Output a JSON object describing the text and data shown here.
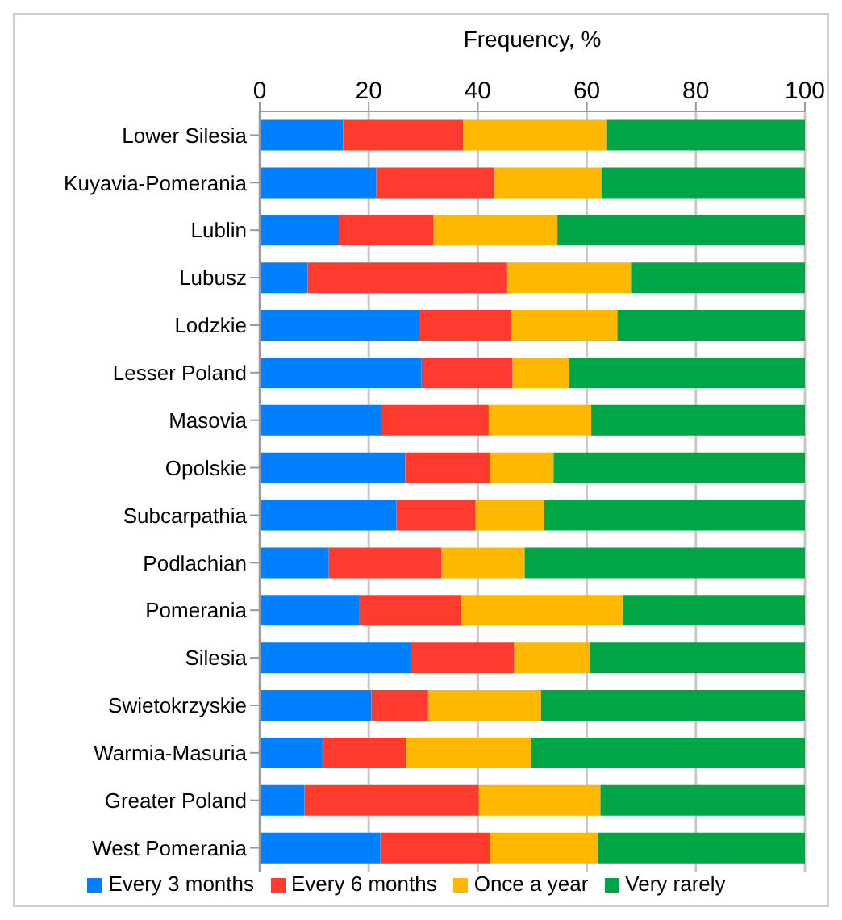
{
  "chart_data": {
    "type": "bar",
    "orientation": "horizontal",
    "stacked": true,
    "xlabel": "Frequency, %",
    "categories": [
      "Lower Silesia",
      "Kuyavia-Pomerania",
      "Lublin",
      "Lubusz",
      "Lodzkie",
      "Lesser Poland",
      "Masovia",
      "Opolskie",
      "Subcarpathia",
      "Podlachian",
      "Pomerania",
      "Silesia",
      "Swietokrzyskie",
      "Warmia-Masuria",
      "Greater Poland",
      "West Pomerania"
    ],
    "series": [
      {
        "name": "Every 3 months",
        "color": "#0080ff",
        "values": [
          15.3,
          21.4,
          14.5,
          8.8,
          29.2,
          29.7,
          22.3,
          26.7,
          25.1,
          12.6,
          18.2,
          27.8,
          20.5,
          11.4,
          8.2,
          22.1
        ]
      },
      {
        "name": "Every 6 months",
        "color": "#ff3b30",
        "values": [
          22.0,
          21.6,
          17.4,
          36.6,
          16.9,
          16.6,
          19.7,
          15.5,
          14.5,
          20.7,
          18.7,
          18.8,
          10.4,
          15.4,
          32.0,
          20.1
        ]
      },
      {
        "name": "Once a year",
        "color": "#ffb800",
        "values": [
          26.4,
          19.7,
          22.7,
          22.7,
          19.5,
          10.4,
          18.8,
          11.7,
          12.6,
          15.3,
          29.7,
          13.9,
          20.7,
          23.0,
          22.3,
          19.9
        ]
      },
      {
        "name": "Very rarely",
        "color": "#00a646",
        "values": [
          36.3,
          37.3,
          45.4,
          31.9,
          34.4,
          43.3,
          39.2,
          46.1,
          47.8,
          51.4,
          33.4,
          39.5,
          48.4,
          50.2,
          37.5,
          37.9
        ]
      }
    ],
    "xlim": [
      0,
      100
    ],
    "xticks": [
      0,
      20,
      40,
      60,
      80,
      100
    ],
    "grid": "x",
    "legend": "bottom"
  }
}
